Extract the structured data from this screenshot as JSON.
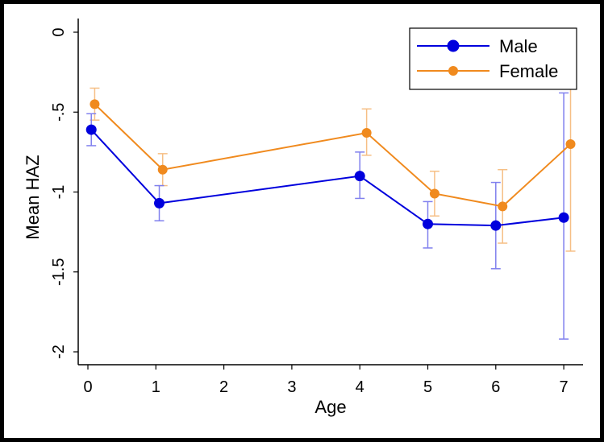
{
  "chart_data": {
    "type": "line",
    "title": "",
    "xlabel": "Age",
    "ylabel": "Mean HAZ",
    "ylim": [
      -2,
      0
    ],
    "y_ticks": [
      {
        "value": 0,
        "label": "0"
      },
      {
        "value": -0.5,
        "label": "-.5"
      },
      {
        "value": -1,
        "label": "-1"
      },
      {
        "value": -1.5,
        "label": "-1.5"
      },
      {
        "value": -2,
        "label": "-2"
      }
    ],
    "x_ticks": [
      "0",
      "1",
      "2",
      "3",
      "4",
      "5",
      "6",
      "7"
    ],
    "x_tick_values": [
      0,
      1,
      2,
      3,
      4,
      5,
      6,
      7
    ],
    "legend_position": "top-right",
    "series": [
      {
        "name": "Male",
        "color": "#0000dd",
        "error_color": "#8080ee",
        "x": [
          0.05,
          1.05,
          4.0,
          5.0,
          6.0,
          7.0
        ],
        "values": [
          -0.61,
          -1.07,
          -0.9,
          -1.2,
          -1.21,
          -1.16
        ],
        "ci_low": [
          -0.71,
          -1.18,
          -1.04,
          -1.35,
          -1.48,
          -1.92
        ],
        "ci_high": [
          -0.51,
          -0.96,
          -0.75,
          -1.06,
          -0.94,
          -0.38
        ]
      },
      {
        "name": "Female",
        "color": "#f08a1e",
        "error_color": "#f6bf85",
        "x": [
          0.1,
          1.1,
          4.1,
          5.1,
          6.1,
          7.1
        ],
        "values": [
          -0.45,
          -0.86,
          -0.63,
          -1.01,
          -1.09,
          -0.7
        ],
        "ci_low": [
          -0.55,
          -0.96,
          -0.77,
          -1.15,
          -1.32,
          -1.37
        ],
        "ci_high": [
          -0.35,
          -0.76,
          -0.48,
          -0.87,
          -0.86,
          -0.35
        ]
      }
    ]
  }
}
